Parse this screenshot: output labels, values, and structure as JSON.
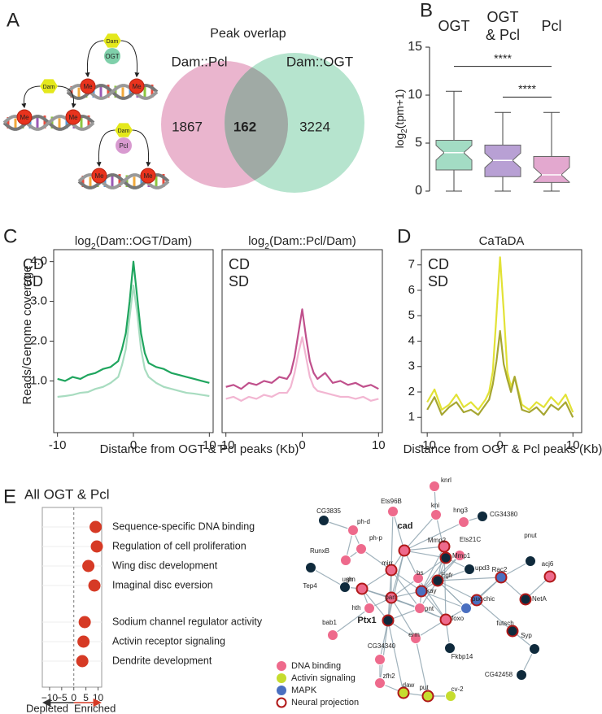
{
  "panels": [
    "A",
    "B",
    "C",
    "D",
    "E"
  ],
  "schematics": [
    {
      "enzyme": "Dam",
      "partner": "OGT",
      "mark": "Me"
    },
    {
      "enzyme": "Dam",
      "mark": "Me"
    },
    {
      "enzyme": "Dam",
      "partner": "Pcl",
      "mark": "Me"
    }
  ],
  "chart_data": [
    {
      "type": "venn",
      "title": "Peak overlap",
      "sets": [
        {
          "name": "Dam::Pcl",
          "color": "#e6a8c6",
          "label_color": "#e0609a",
          "value": 1867
        },
        {
          "name": "Dam::OGT",
          "color": "#a9dfc6",
          "label_color": "#5cc497",
          "value": 3224
        }
      ],
      "overlap": 162
    },
    {
      "type": "box",
      "ylabel": [
        "log",
        "2",
        "(tpm+1)"
      ],
      "ylim": [
        0,
        15
      ],
      "yticks": [
        0,
        5,
        10,
        15
      ],
      "series": [
        {
          "name": [
            "OGT"
          ],
          "color": "#a3dcc4",
          "label_color": "#7fd0aa",
          "min": 0,
          "q1": 2.2,
          "median": 4.0,
          "q3": 5.3,
          "max": 10.4
        },
        {
          "name": [
            "OGT",
            "& Pcl"
          ],
          "color": "#b8a0d4",
          "label_color": "#9b7bbf",
          "min": 0,
          "q1": 1.5,
          "median": 3.2,
          "q3": 4.8,
          "max": 8.2
        },
        {
          "name": [
            "Pcl"
          ],
          "color": "#e3a8cf",
          "label_color": "#c88dc0",
          "min": 0,
          "q1": 0.9,
          "median": 1.7,
          "q3": 3.6,
          "max": 8.2
        }
      ],
      "significance": [
        {
          "label": "****",
          "from": 0,
          "to": 2,
          "y": 13
        },
        {
          "label": "****",
          "from": 1,
          "to": 2,
          "y": 9.8
        }
      ]
    },
    {
      "type": "line",
      "title": [
        "log",
        "2",
        "(Dam::OGT/Dam)"
      ],
      "title_color": "#6cc99a",
      "ylabel": "Reads/Genome coverage",
      "xlabel": "Distance from OGT & Pcl peaks (Kb)",
      "xlim": [
        -10.5,
        10.5
      ],
      "xticks": [
        -10,
        0,
        10
      ],
      "ylim": [
        -0.3,
        4.3
      ],
      "yticks": [
        {
          "value": 1,
          "label": "1.0"
        },
        {
          "value": 2,
          "label": "2.0"
        },
        {
          "value": 3,
          "label": "3.0"
        },
        {
          "value": 4,
          "label": "4.0"
        }
      ],
      "x": [
        -10,
        -9,
        -8,
        -7,
        -6,
        -5,
        -4,
        -3,
        -2,
        -1.5,
        -1,
        -0.5,
        0,
        0.5,
        1,
        1.5,
        2,
        3,
        4,
        5,
        6,
        7,
        8,
        9,
        10
      ],
      "series": [
        {
          "name": "CD",
          "color": "#a8dcc0",
          "values": [
            0.6,
            0.62,
            0.65,
            0.7,
            0.72,
            0.8,
            0.85,
            0.95,
            1.1,
            1.4,
            1.8,
            2.6,
            3.4,
            2.7,
            1.8,
            1.3,
            1.1,
            0.95,
            0.85,
            0.8,
            0.75,
            0.7,
            0.68,
            0.65,
            0.62
          ]
        },
        {
          "name": "SD",
          "color": "#1fa55e",
          "values": [
            1.05,
            1.0,
            1.1,
            1.05,
            1.15,
            1.2,
            1.3,
            1.35,
            1.5,
            1.8,
            2.2,
            3.0,
            4.0,
            3.1,
            2.2,
            1.7,
            1.45,
            1.35,
            1.3,
            1.2,
            1.15,
            1.1,
            1.05,
            1.0,
            0.95
          ]
        }
      ]
    },
    {
      "type": "line",
      "title": [
        "log",
        "2",
        "(Dam::Pcl/Dam)"
      ],
      "title_color": "#e0609a",
      "xlim": [
        -10.5,
        10.5
      ],
      "xticks": [
        -10,
        0,
        10
      ],
      "ylim": [
        -0.3,
        4.3
      ],
      "x": [
        -10,
        -9,
        -8,
        -7,
        -6,
        -5,
        -4,
        -3,
        -2,
        -1.5,
        -1,
        -0.5,
        0,
        0.5,
        1,
        1.5,
        2,
        3,
        4,
        5,
        6,
        7,
        8,
        9,
        10
      ],
      "series": [
        {
          "name": "CD",
          "color": "#f2b6d2",
          "values": [
            0.55,
            0.6,
            0.5,
            0.6,
            0.55,
            0.65,
            0.6,
            0.7,
            0.7,
            0.85,
            1.2,
            1.7,
            2.1,
            1.6,
            1.1,
            0.85,
            0.75,
            0.7,
            0.65,
            0.6,
            0.6,
            0.55,
            0.6,
            0.5,
            0.55
          ]
        },
        {
          "name": "SD",
          "color": "#c0508c",
          "values": [
            0.85,
            0.9,
            0.8,
            0.95,
            0.9,
            1.0,
            0.95,
            1.1,
            1.05,
            1.2,
            1.6,
            2.2,
            2.8,
            2.1,
            1.5,
            1.2,
            1.05,
            1.2,
            0.95,
            1.0,
            0.9,
            0.95,
            0.85,
            0.9,
            0.8
          ]
        }
      ]
    },
    {
      "type": "line",
      "title": [
        "CaTaDA"
      ],
      "title_color": "#a8a830",
      "xlabel": "Distance from OGT & Pcl peaks (Kb)",
      "xlim": [
        -10.8,
        11.2
      ],
      "xticks": [
        -10,
        0,
        10
      ],
      "ylim": [
        0.4,
        7.6
      ],
      "yticks": [
        1,
        2,
        3,
        4,
        5,
        6,
        7
      ],
      "x": [
        -10,
        -9,
        -8,
        -7,
        -6,
        -5,
        -4,
        -3,
        -2,
        -1.5,
        -1,
        -0.5,
        0,
        0.5,
        1,
        1.5,
        2,
        3,
        4,
        5,
        6,
        7,
        8,
        9,
        10
      ],
      "series": [
        {
          "name": "CD",
          "color": "#e2e236",
          "values": [
            1.6,
            2.1,
            1.3,
            1.5,
            1.9,
            1.4,
            1.6,
            1.3,
            1.7,
            2.0,
            2.8,
            5.0,
            7.3,
            5.2,
            2.8,
            2.2,
            2.6,
            1.5,
            1.3,
            1.6,
            1.4,
            1.8,
            1.5,
            1.9,
            1.2
          ]
        },
        {
          "name": "SD",
          "color": "#a6a632",
          "values": [
            1.3,
            1.8,
            1.1,
            1.4,
            1.6,
            1.2,
            1.3,
            1.1,
            1.5,
            1.7,
            2.3,
            3.2,
            4.4,
            3.1,
            2.5,
            2.0,
            2.6,
            1.3,
            1.2,
            1.4,
            1.1,
            1.5,
            1.3,
            1.6,
            1.0
          ]
        }
      ]
    },
    {
      "type": "dot",
      "title": "All OGT & Pcl",
      "title_color": "#9b6bc0",
      "categories": [
        "Sequence-specific DNA binding",
        "Regulation of cell proliferation",
        "Wing disc development",
        "Imaginal disc eversion",
        "Sodium channel regulator activity",
        "Activin receptor signaling",
        "Dendrite development"
      ],
      "values": [
        9,
        9.5,
        6,
        8.5,
        4.5,
        4,
        3.5
      ],
      "color": "#d63a25",
      "xlim": [
        -13,
        11.5
      ],
      "xticks": [
        {
          "value": -10,
          "label": "−10"
        },
        {
          "value": -5,
          "label": "−5"
        },
        0,
        5,
        10
      ],
      "xlabels": [
        "Depleted",
        "Enriched"
      ],
      "xlabel_colors": [
        "#333333",
        "#d63a25"
      ]
    }
  ],
  "network": {
    "other_color": "#0f2a3c",
    "legend": [
      {
        "label": "DNA binding",
        "color": "#ee6a8c"
      },
      {
        "label": "Activin signaling",
        "color": "#c6dc2e"
      },
      {
        "label": "MAPK",
        "color": "#4a6fc0"
      },
      {
        "label": "Neural projection",
        "ring": "#b01818"
      }
    ],
    "nodes": [
      {
        "label": "knrl",
        "group": 0,
        "neural": false
      },
      {
        "label": "Ets96B",
        "group": 0,
        "neural": false
      },
      {
        "label": "kni",
        "group": 0,
        "neural": false
      },
      {
        "label": "hng3",
        "group": 0,
        "neural": false
      },
      {
        "label": "CG34380",
        "group": null,
        "neural": false
      },
      {
        "label": "CG3835",
        "group": null,
        "neural": false
      },
      {
        "label": "ph-d",
        "group": 0,
        "neural": false
      },
      {
        "label": "cad",
        "group": 0,
        "neural": true,
        "bold": true
      },
      {
        "label": "Mmp2",
        "group": 0,
        "neural": true
      },
      {
        "label": "Ets21C",
        "group": 0,
        "neural": false
      },
      {
        "label": "Mmp1",
        "group": null,
        "neural": true
      },
      {
        "label": "pnut",
        "group": null,
        "neural": false
      },
      {
        "label": "ph-p",
        "group": 0,
        "neural": false
      },
      {
        "label": "RunxB",
        "group": 0,
        "neural": false
      },
      {
        "label": "mirr",
        "group": 0,
        "neural": true
      },
      {
        "label": "upd3",
        "group": null,
        "neural": false
      },
      {
        "label": "Egfr",
        "group": null,
        "neural": true
      },
      {
        "label": "Rac2",
        "group": 2,
        "neural": true
      },
      {
        "label": "acj6",
        "group": 0,
        "neural": true
      },
      {
        "label": "Tep4",
        "group": null,
        "neural": false
      },
      {
        "label": "ush",
        "group": null,
        "neural": false
      },
      {
        "label": "grn",
        "group": 0,
        "neural": true
      },
      {
        "label": "bs",
        "group": 0,
        "neural": false
      },
      {
        "label": "kay",
        "group": 2,
        "neural": true
      },
      {
        "label": "pan",
        "group": 0,
        "neural": true
      },
      {
        "label": "chic",
        "group": 2,
        "neural": true
      },
      {
        "label": "NetA",
        "group": null,
        "neural": true
      },
      {
        "label": "hth",
        "group": 0,
        "neural": false
      },
      {
        "label": "pnt",
        "group": 0,
        "neural": false
      },
      {
        "label": "puc",
        "group": 2,
        "neural": false
      },
      {
        "label": "Ptx1",
        "group": null,
        "neural": true,
        "bold": true
      },
      {
        "label": "foxo",
        "group": 0,
        "neural": true
      },
      {
        "label": "futsch",
        "group": null,
        "neural": true
      },
      {
        "label": "bab1",
        "group": 0,
        "neural": false
      },
      {
        "label": "erm",
        "group": 0,
        "neural": false
      },
      {
        "label": "Syp",
        "group": null,
        "neural": false
      },
      {
        "label": "CG34340",
        "group": 0,
        "neural": false
      },
      {
        "label": "Fkbp14",
        "group": null,
        "neural": false
      },
      {
        "label": "zfh2",
        "group": 0,
        "neural": false
      },
      {
        "label": "CG42458",
        "group": null,
        "neural": false
      },
      {
        "label": "daw",
        "group": 1,
        "neural": true
      },
      {
        "label": "put",
        "group": 1,
        "neural": true
      },
      {
        "label": "cv-2",
        "group": 1,
        "neural": false
      }
    ]
  }
}
